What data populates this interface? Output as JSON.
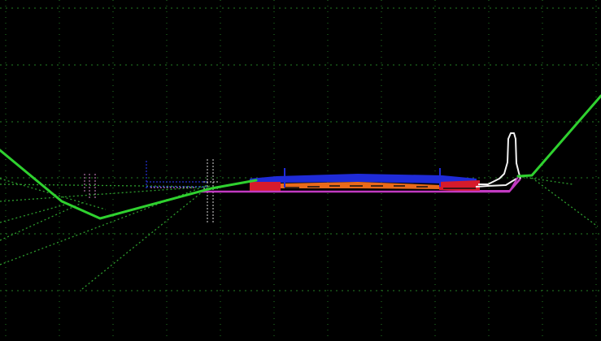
{
  "view": {
    "background": "#000000",
    "grid_color": "#2e9e2e",
    "tiny_annotation_left": "",
    "tiny_annotation_mid": ""
  },
  "colors": {
    "ground_line": "#2fd12f",
    "projection_lines": "#2d9d2d",
    "pavement_top": "#1f2bd8",
    "pavement_base": "#e86a1b",
    "pavement_red": "#d61b2b",
    "subgrade_magenta": "#c13ac1",
    "curb_white": "#f2f2f2",
    "guide_blue": "#2a3cff",
    "guide_white": "#d7d7d7",
    "guide_pink": "#d58ac9",
    "section_line_black": "#111111"
  }
}
